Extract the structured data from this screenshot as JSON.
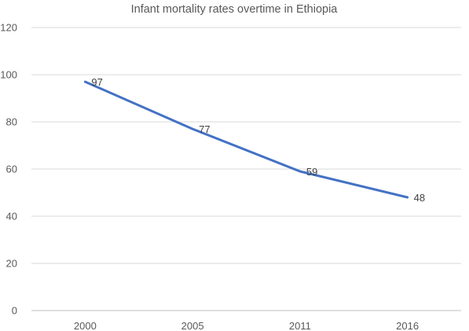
{
  "chart_data": {
    "type": "line",
    "title": "Infant mortality rates overtime in Ethiopia",
    "xlabel": "",
    "ylabel": "",
    "categories": [
      "2000",
      "2005",
      "2011",
      "2016"
    ],
    "series": [
      {
        "values": [
          97,
          77,
          59,
          48
        ],
        "color": "#4472c4"
      }
    ],
    "ylim": [
      0,
      120
    ],
    "yticks": [
      0,
      20,
      40,
      60,
      80,
      100,
      120
    ],
    "grid": true,
    "legend": "none",
    "data_labels": true
  }
}
